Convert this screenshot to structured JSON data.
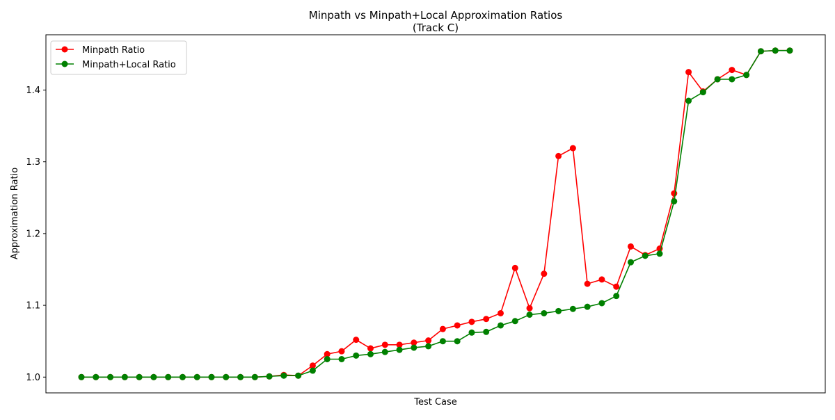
{
  "chart_data": {
    "type": "line",
    "title": "Minpath vs Minpath+Local Approximation Ratios",
    "subtitle": "(Track C)",
    "xlabel": "Test Case",
    "ylabel": "Approximation Ratio",
    "ylim": [
      0.978,
      1.477
    ],
    "yticks": [
      "1.0",
      "1.1",
      "1.2",
      "1.3",
      "1.4"
    ],
    "ytick_values": [
      1.0,
      1.1,
      1.2,
      1.3,
      1.4
    ],
    "x": [
      0,
      1,
      2,
      3,
      4,
      5,
      6,
      7,
      8,
      9,
      10,
      11,
      12,
      13,
      14,
      15,
      16,
      17,
      18,
      19,
      20,
      21,
      22,
      23,
      24,
      25,
      26,
      27,
      28,
      29,
      30,
      31,
      32,
      33,
      34,
      35,
      36,
      37,
      38,
      39,
      40,
      41,
      42,
      43,
      44,
      45,
      46,
      47,
      48,
      49
    ],
    "legend_position": "top-left",
    "grid": false,
    "series": [
      {
        "name": "Minpath Ratio",
        "color": "#ff0000",
        "values": [
          1.0,
          1.0,
          1.0,
          1.0,
          1.0,
          1.0,
          1.0,
          1.0,
          1.0,
          1.0,
          1.0,
          1.0,
          1.0,
          1.001,
          1.003,
          1.002,
          1.016,
          1.032,
          1.036,
          1.052,
          1.04,
          1.045,
          1.045,
          1.048,
          1.051,
          1.067,
          1.072,
          1.077,
          1.081,
          1.089,
          1.152,
          1.096,
          1.144,
          1.308,
          1.319,
          1.13,
          1.136,
          1.126,
          1.182,
          1.17,
          1.179,
          1.256,
          1.425,
          1.398,
          1.415,
          1.428,
          1.421,
          1.454,
          1.455,
          1.455
        ]
      },
      {
        "name": "Minpath+Local Ratio",
        "color": "#008000",
        "values": [
          1.0,
          1.0,
          1.0,
          1.0,
          1.0,
          1.0,
          1.0,
          1.0,
          1.0,
          1.0,
          1.0,
          1.0,
          1.0,
          1.001,
          1.002,
          1.002,
          1.009,
          1.025,
          1.025,
          1.03,
          1.032,
          1.035,
          1.038,
          1.041,
          1.043,
          1.05,
          1.05,
          1.062,
          1.063,
          1.072,
          1.078,
          1.087,
          1.089,
          1.092,
          1.095,
          1.098,
          1.103,
          1.113,
          1.16,
          1.169,
          1.172,
          1.245,
          1.385,
          1.397,
          1.415,
          1.415,
          1.421,
          1.454,
          1.455,
          1.455
        ]
      }
    ]
  }
}
